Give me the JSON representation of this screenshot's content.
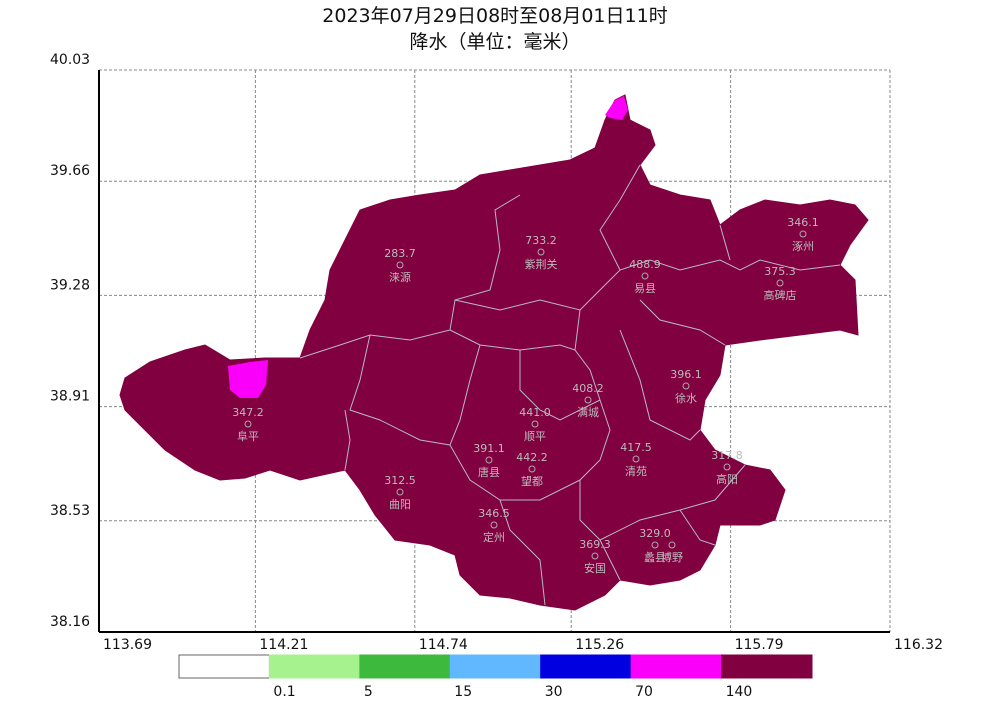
{
  "header": {
    "title": "2023年07月29日08时至08月01日11时",
    "subtitle": "降水（单位：毫米）"
  },
  "axes": {
    "xticks": [
      113.69,
      114.21,
      114.74,
      115.26,
      115.79,
      116.32
    ],
    "yticks": [
      40.03,
      39.66,
      39.28,
      38.91,
      38.53,
      38.16
    ]
  },
  "stations": [
    {
      "name": "涞源",
      "value": "283.7"
    },
    {
      "name": "紫荆关",
      "value": "733.2"
    },
    {
      "name": "易县",
      "value": "488.9"
    },
    {
      "name": "涿州",
      "value": "346.1"
    },
    {
      "name": "高碑店",
      "value": "375.3"
    },
    {
      "name": "徐水",
      "value": "396.1"
    },
    {
      "name": "满城",
      "value": "408.2"
    },
    {
      "name": "顺平",
      "value": "441.0"
    },
    {
      "name": "阜平",
      "value": "347.2"
    },
    {
      "name": "唐县",
      "value": "391.1"
    },
    {
      "name": "望都",
      "value": "442.2"
    },
    {
      "name": "清苑",
      "value": "417.5"
    },
    {
      "name": "高阳",
      "value": "317.8"
    },
    {
      "name": "曲阳",
      "value": "312.5"
    },
    {
      "name": "定州",
      "value": "346.5"
    },
    {
      "name": "安国",
      "value": "369.3"
    },
    {
      "name": "蠡县",
      "value": "329.0"
    },
    {
      "name": "博野"
    }
  ],
  "legend": {
    "colors": [
      "#ffffff",
      "#a6f28f",
      "#3dba3d",
      "#61b8ff",
      "#0000e1",
      "#fa00fa",
      "#800040"
    ],
    "labels": [
      0.1,
      5,
      15,
      30,
      70,
      140
    ]
  }
}
